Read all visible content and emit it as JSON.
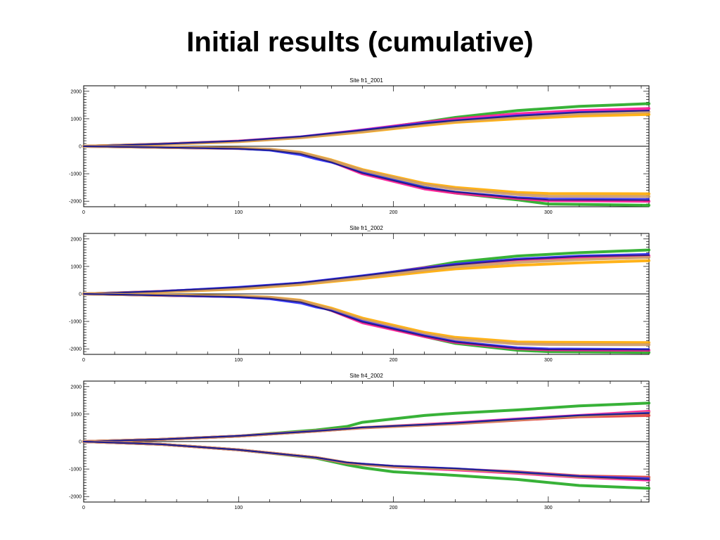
{
  "slide": {
    "title": "Initial results (cumulative)"
  },
  "colors": {
    "green": "#22aa22",
    "pink": "#ff1493",
    "magenta": "#cc33cc",
    "red": "#e23c3c",
    "orange": "#ffaa00",
    "tan": "#cc9966",
    "navy": "#1a1a80",
    "blue": "#2a2aff",
    "axis": "#000000"
  },
  "chart_data": [
    {
      "type": "line",
      "title": "Site fr1_2001",
      "xlim": [
        0,
        365
      ],
      "ylim": [
        -2200,
        2200
      ],
      "xticks": [
        0,
        100,
        200,
        300
      ],
      "yticks": [
        2000,
        1000,
        0,
        -1000,
        -2000
      ],
      "zero_line": true,
      "series": [
        {
          "color": "green",
          "x": [
            0,
            50,
            100,
            140,
            180,
            220,
            240,
            280,
            320,
            365
          ],
          "y": [
            0,
            80,
            180,
            330,
            570,
            880,
            1050,
            1300,
            1450,
            1550
          ]
        },
        {
          "color": "pink",
          "x": [
            0,
            50,
            100,
            140,
            180,
            220,
            240,
            280,
            320,
            365
          ],
          "y": [
            0,
            80,
            190,
            340,
            590,
            870,
            990,
            1180,
            1300,
            1370
          ]
        },
        {
          "color": "orange",
          "x": [
            0,
            50,
            100,
            140,
            180,
            220,
            240,
            280,
            320,
            365
          ],
          "y": [
            0,
            70,
            170,
            310,
            520,
            760,
            870,
            1000,
            1100,
            1160
          ]
        },
        {
          "color": "tan",
          "x": [
            0,
            50,
            100,
            140,
            180,
            220,
            240,
            280,
            320,
            365
          ],
          "y": [
            0,
            75,
            180,
            320,
            540,
            800,
            910,
            1060,
            1180,
            1250
          ]
        },
        {
          "color": "blue",
          "x": [
            0,
            50,
            100,
            140,
            180,
            220,
            240,
            280,
            320,
            365
          ],
          "y": [
            0,
            90,
            200,
            360,
            600,
            860,
            950,
            1130,
            1250,
            1300
          ]
        },
        {
          "color": "navy",
          "x": [
            0,
            50,
            100,
            140,
            180,
            220,
            240,
            280,
            320,
            365
          ],
          "y": [
            0,
            85,
            195,
            350,
            580,
            830,
            940,
            1100,
            1230,
            1300
          ]
        },
        {
          "color": "green",
          "x": [
            0,
            50,
            100,
            120,
            140,
            160,
            180,
            220,
            240,
            280,
            300,
            365
          ],
          "y": [
            0,
            -40,
            -80,
            -130,
            -250,
            -560,
            -950,
            -1500,
            -1700,
            -1950,
            -2100,
            -2150
          ]
        },
        {
          "color": "pink",
          "x": [
            0,
            50,
            100,
            120,
            140,
            160,
            180,
            220,
            240,
            280,
            300,
            365
          ],
          "y": [
            0,
            -40,
            -80,
            -120,
            -240,
            -560,
            -1000,
            -1550,
            -1700,
            -1900,
            -1980,
            -2000
          ]
        },
        {
          "color": "orange",
          "x": [
            0,
            50,
            100,
            120,
            140,
            160,
            180,
            220,
            240,
            280,
            300,
            365
          ],
          "y": [
            0,
            -35,
            -70,
            -110,
            -220,
            -500,
            -850,
            -1350,
            -1500,
            -1680,
            -1720,
            -1730
          ]
        },
        {
          "color": "tan",
          "x": [
            0,
            50,
            100,
            120,
            140,
            160,
            180,
            220,
            240,
            280,
            300,
            365
          ],
          "y": [
            0,
            -38,
            -75,
            -115,
            -230,
            -520,
            -880,
            -1400,
            -1560,
            -1760,
            -1820,
            -1830
          ]
        },
        {
          "color": "blue",
          "x": [
            0,
            50,
            100,
            120,
            140,
            150,
            160,
            180,
            220,
            240,
            280,
            300,
            365
          ],
          "y": [
            0,
            -40,
            -100,
            -160,
            -330,
            -480,
            -600,
            -950,
            -1480,
            -1650,
            -1850,
            -1900,
            -1910
          ]
        },
        {
          "color": "navy",
          "x": [
            0,
            50,
            100,
            120,
            140,
            160,
            180,
            220,
            240,
            280,
            300,
            365
          ],
          "y": [
            0,
            -42,
            -90,
            -140,
            -280,
            -580,
            -980,
            -1520,
            -1660,
            -1880,
            -1950,
            -1960
          ]
        }
      ]
    },
    {
      "type": "line",
      "title": "Site fr1_2002",
      "xlim": [
        0,
        365
      ],
      "ylim": [
        -2200,
        2200
      ],
      "xticks": [
        0,
        100,
        200,
        300
      ],
      "yticks": [
        2000,
        1000,
        0,
        -1000,
        -2000
      ],
      "zero_line": true,
      "series": [
        {
          "color": "green",
          "x": [
            0,
            50,
            100,
            140,
            180,
            220,
            240,
            280,
            320,
            365
          ],
          "y": [
            0,
            90,
            220,
            390,
            640,
            960,
            1150,
            1380,
            1500,
            1600
          ]
        },
        {
          "color": "pink",
          "x": [
            0,
            50,
            100,
            140,
            180,
            220,
            240,
            280,
            320,
            365
          ],
          "y": [
            0,
            90,
            220,
            390,
            640,
            950,
            1070,
            1240,
            1330,
            1390
          ]
        },
        {
          "color": "orange",
          "x": [
            0,
            50,
            100,
            140,
            180,
            220,
            240,
            280,
            320,
            365
          ],
          "y": [
            0,
            70,
            180,
            340,
            560,
            800,
            910,
            1040,
            1130,
            1210
          ]
        },
        {
          "color": "tan",
          "x": [
            0,
            50,
            100,
            140,
            180,
            220,
            240,
            280,
            320,
            365
          ],
          "y": [
            0,
            80,
            200,
            360,
            600,
            870,
            990,
            1150,
            1250,
            1330
          ]
        },
        {
          "color": "blue",
          "x": [
            0,
            50,
            100,
            140,
            180,
            220,
            240,
            280,
            320,
            365
          ],
          "y": [
            0,
            110,
            260,
            420,
            680,
            960,
            1100,
            1290,
            1400,
            1460
          ]
        },
        {
          "color": "navy",
          "x": [
            0,
            50,
            100,
            140,
            180,
            220,
            240,
            280,
            320,
            365
          ],
          "y": [
            0,
            100,
            240,
            400,
            660,
            930,
            1060,
            1250,
            1360,
            1410
          ]
        },
        {
          "color": "green",
          "x": [
            0,
            50,
            100,
            120,
            140,
            160,
            180,
            220,
            240,
            280,
            300,
            365
          ],
          "y": [
            0,
            -50,
            -100,
            -150,
            -270,
            -600,
            -1000,
            -1550,
            -1800,
            -2050,
            -2100,
            -2130
          ]
        },
        {
          "color": "pink",
          "x": [
            0,
            50,
            100,
            120,
            140,
            160,
            180,
            220,
            240,
            280,
            300,
            365
          ],
          "y": [
            0,
            -50,
            -100,
            -140,
            -260,
            -600,
            -1050,
            -1550,
            -1760,
            -1990,
            -2030,
            -2050
          ]
        },
        {
          "color": "orange",
          "x": [
            0,
            50,
            100,
            120,
            140,
            160,
            180,
            220,
            240,
            280,
            300,
            365
          ],
          "y": [
            0,
            -40,
            -80,
            -120,
            -230,
            -520,
            -880,
            -1400,
            -1580,
            -1750,
            -1760,
            -1770
          ]
        },
        {
          "color": "tan",
          "x": [
            0,
            50,
            100,
            120,
            140,
            160,
            180,
            220,
            240,
            280,
            300,
            365
          ],
          "y": [
            0,
            -45,
            -90,
            -130,
            -250,
            -560,
            -940,
            -1460,
            -1650,
            -1820,
            -1840,
            -1850
          ]
        },
        {
          "color": "blue",
          "x": [
            0,
            50,
            100,
            120,
            140,
            150,
            160,
            180,
            220,
            240,
            280,
            300,
            365
          ],
          "y": [
            0,
            -60,
            -130,
            -200,
            -350,
            -500,
            -600,
            -980,
            -1500,
            -1720,
            -1940,
            -1980,
            -2000
          ]
        },
        {
          "color": "navy",
          "x": [
            0,
            50,
            100,
            120,
            140,
            160,
            180,
            220,
            240,
            280,
            300,
            365
          ],
          "y": [
            0,
            -55,
            -110,
            -170,
            -300,
            -620,
            -1020,
            -1530,
            -1750,
            -1980,
            -2020,
            -2030
          ]
        }
      ]
    },
    {
      "type": "line",
      "title": "Site fr4_2002",
      "xlim": [
        0,
        365
      ],
      "ylim": [
        -2200,
        2200
      ],
      "xticks": [
        0,
        100,
        200,
        300
      ],
      "yticks": [
        2000,
        1000,
        0,
        -1000,
        -2000
      ],
      "zero_line": true,
      "series": [
        {
          "color": "green",
          "x": [
            0,
            50,
            100,
            150,
            170,
            180,
            220,
            240,
            280,
            320,
            365
          ],
          "y": [
            0,
            80,
            200,
            420,
            550,
            700,
            950,
            1030,
            1150,
            1300,
            1400
          ]
        },
        {
          "color": "pink",
          "x": [
            0,
            50,
            100,
            150,
            170,
            180,
            220,
            240,
            280,
            320,
            365
          ],
          "y": [
            0,
            80,
            200,
            380,
            460,
            510,
            620,
            680,
            820,
            950,
            1100
          ]
        },
        {
          "color": "red",
          "x": [
            0,
            50,
            100,
            150,
            170,
            180,
            220,
            240,
            280,
            320,
            365
          ],
          "y": [
            0,
            80,
            200,
            380,
            460,
            500,
            600,
            650,
            780,
            900,
            950
          ]
        },
        {
          "color": "tan",
          "x": [
            0,
            50,
            100,
            150,
            170,
            180,
            220,
            240,
            280,
            320,
            365
          ],
          "y": [
            0,
            80,
            200,
            380,
            460,
            510,
            610,
            660,
            800,
            930,
            1050
          ]
        },
        {
          "color": "blue",
          "x": [
            0,
            50,
            100,
            150,
            170,
            180,
            220,
            240,
            280,
            320,
            365
          ],
          "y": [
            0,
            85,
            210,
            390,
            470,
            520,
            620,
            680,
            830,
            960,
            1050
          ]
        },
        {
          "color": "navy",
          "x": [
            0,
            50,
            100,
            150,
            170,
            180,
            220,
            240,
            280,
            320,
            365
          ],
          "y": [
            0,
            80,
            205,
            385,
            465,
            515,
            615,
            670,
            810,
            950,
            1030
          ]
        },
        {
          "color": "green",
          "x": [
            0,
            50,
            100,
            150,
            170,
            180,
            200,
            240,
            280,
            320,
            365
          ],
          "y": [
            0,
            -100,
            -300,
            -600,
            -850,
            -950,
            -1100,
            -1230,
            -1380,
            -1600,
            -1700
          ]
        },
        {
          "color": "pink",
          "x": [
            0,
            50,
            100,
            150,
            170,
            180,
            200,
            240,
            280,
            320,
            365
          ],
          "y": [
            0,
            -100,
            -300,
            -580,
            -780,
            -830,
            -920,
            -1030,
            -1150,
            -1300,
            -1400
          ]
        },
        {
          "color": "red",
          "x": [
            0,
            50,
            100,
            150,
            170,
            180,
            200,
            240,
            280,
            320,
            365
          ],
          "y": [
            0,
            -100,
            -300,
            -580,
            -770,
            -820,
            -900,
            -1000,
            -1100,
            -1250,
            -1300
          ]
        },
        {
          "color": "tan",
          "x": [
            0,
            50,
            100,
            150,
            170,
            180,
            200,
            240,
            280,
            320,
            365
          ],
          "y": [
            0,
            -100,
            -300,
            -580,
            -770,
            -820,
            -910,
            -1000,
            -1120,
            -1280,
            -1350
          ]
        },
        {
          "color": "blue",
          "x": [
            0,
            50,
            100,
            150,
            170,
            180,
            200,
            240,
            280,
            320,
            365
          ],
          "y": [
            0,
            -100,
            -300,
            -580,
            -760,
            -800,
            -880,
            -970,
            -1100,
            -1250,
            -1330
          ]
        },
        {
          "color": "navy",
          "x": [
            0,
            50,
            100,
            150,
            170,
            180,
            200,
            240,
            280,
            320,
            365
          ],
          "y": [
            0,
            -100,
            -300,
            -580,
            -760,
            -810,
            -890,
            -980,
            -1120,
            -1270,
            -1380
          ]
        }
      ]
    }
  ]
}
